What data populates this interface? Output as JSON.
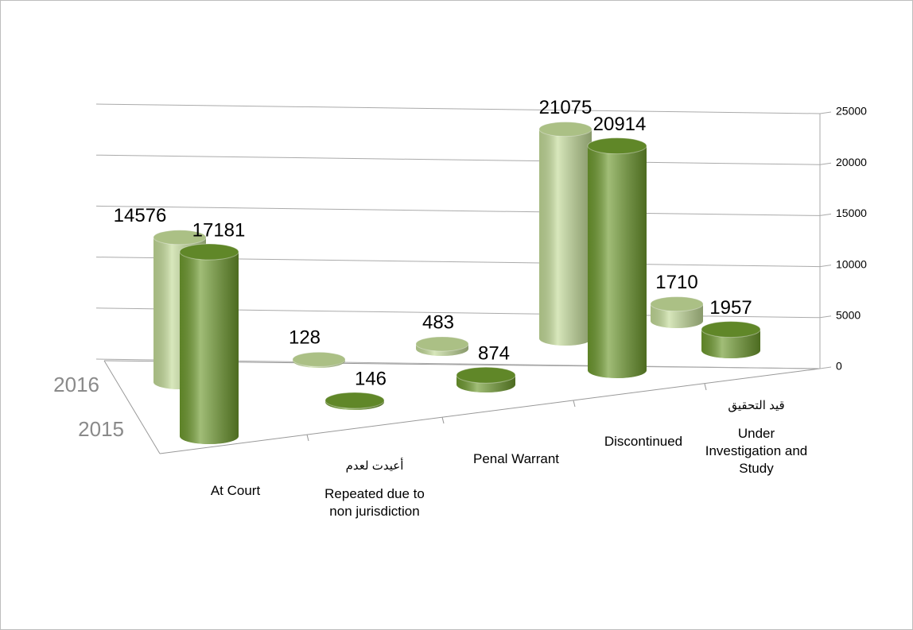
{
  "chart_data": {
    "type": "cylinder-bar",
    "categories": [
      "At Court",
      "Repeated due to non jurisdiction",
      "Penal Warrant",
      "Discontinued",
      "Under Investigation and Study"
    ],
    "arabic_labels": [
      null,
      "أعيدت لعدم",
      null,
      null,
      "قيد التحقيق"
    ],
    "series": [
      {
        "name": "2016",
        "color": "#c3db98",
        "values": [
          14576,
          128,
          483,
          21075,
          1710
        ]
      },
      {
        "name": "2015",
        "color": "#6e9a2e",
        "values": [
          17181,
          146,
          874,
          20914,
          1957
        ]
      }
    ],
    "ylim": [
      0,
      25000
    ],
    "yticks": [
      0,
      5000,
      10000,
      15000,
      20000,
      25000
    ],
    "grid": true
  }
}
